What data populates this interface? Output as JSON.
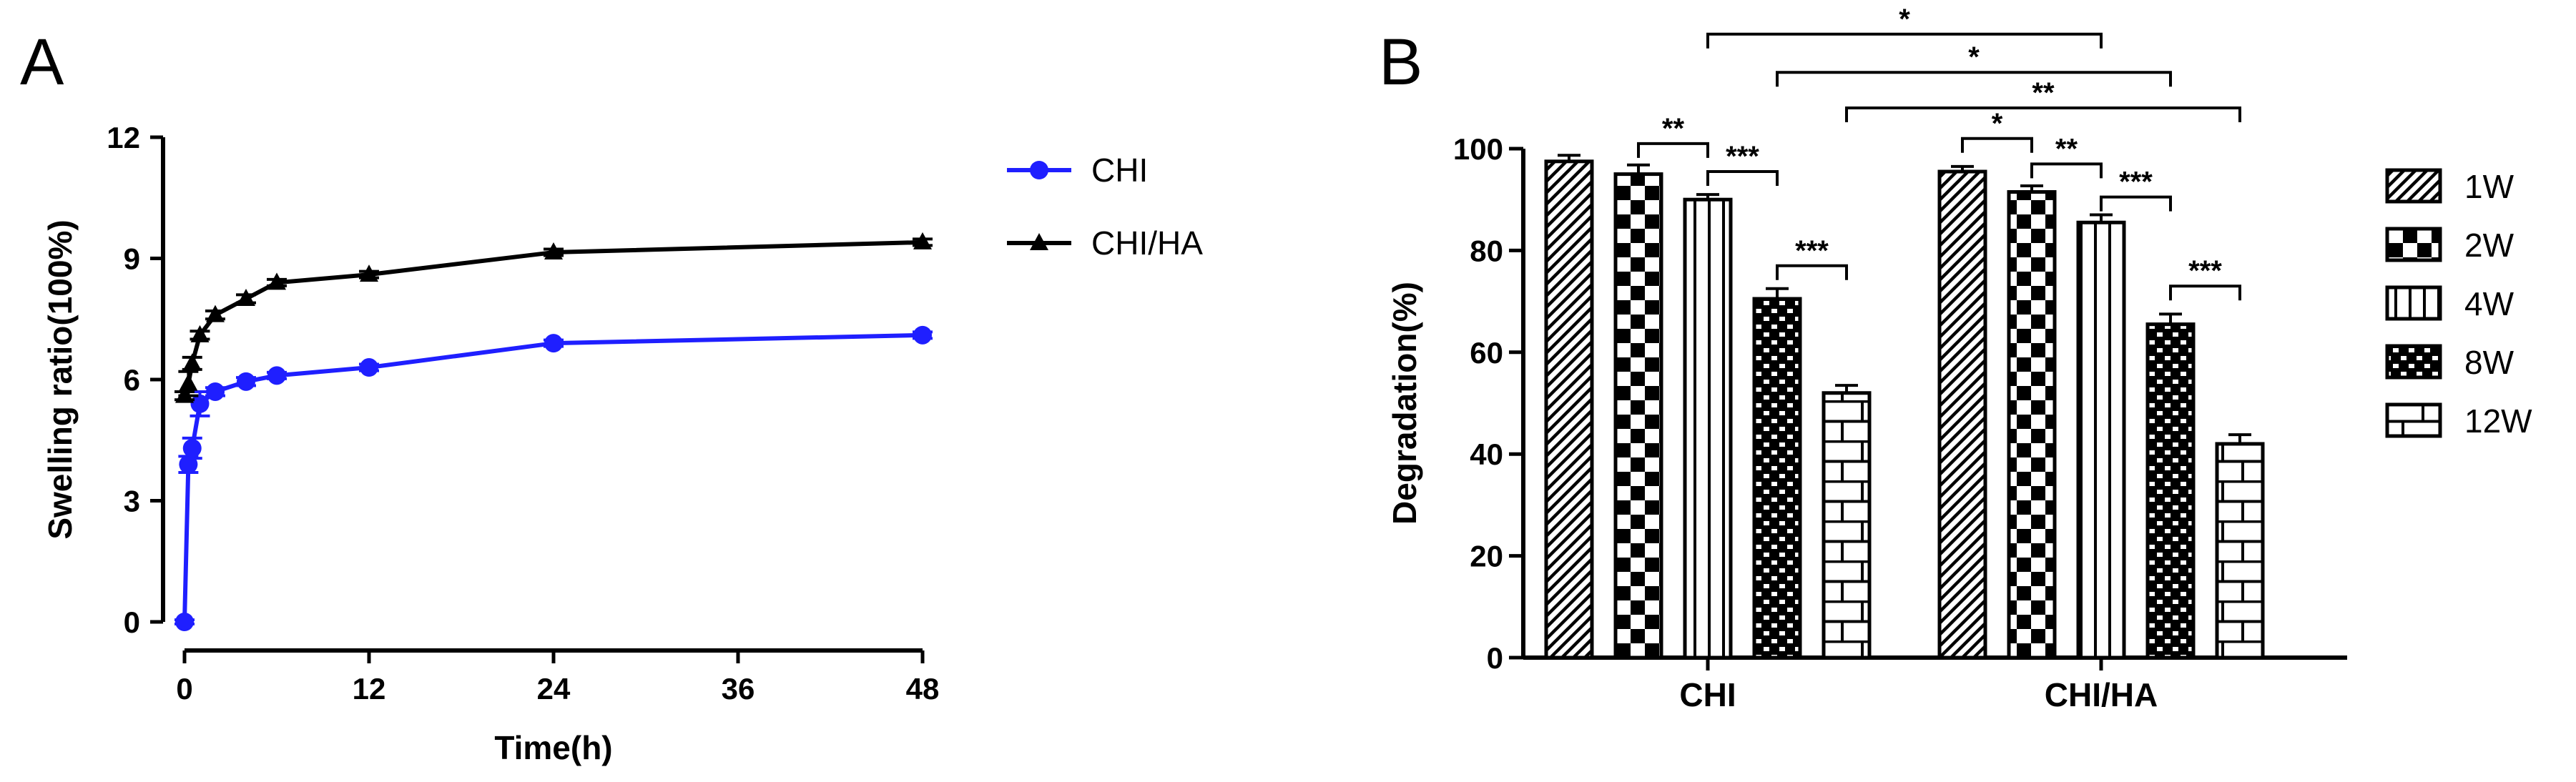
{
  "panels": {
    "A": {
      "letter": "A"
    },
    "B": {
      "letter": "B"
    }
  },
  "chart_data": [
    {
      "type": "line",
      "panel": "A",
      "title": "",
      "xlabel": "Time(h)",
      "ylabel": "Swelling ratio(100%)",
      "xlim": [
        0,
        48
      ],
      "ylim": [
        0,
        12
      ],
      "xticks": [
        0,
        12,
        24,
        36,
        48
      ],
      "yticks": [
        0,
        3,
        6,
        9,
        12
      ],
      "legend_position": "top-right",
      "series": [
        {
          "name": "CHI",
          "marker": "circle",
          "color": "#1f1fff",
          "x": [
            0,
            0.25,
            0.5,
            1,
            2,
            4,
            6,
            12,
            24,
            48
          ],
          "y": [
            0,
            3.9,
            4.3,
            5.4,
            5.7,
            5.95,
            6.1,
            6.3,
            6.9,
            7.1
          ],
          "err": [
            0.05,
            0.2,
            0.25,
            0.3,
            0.1,
            0.1,
            0.08,
            0.08,
            0.08,
            0.08
          ]
        },
        {
          "name": "CHI/HA",
          "marker": "triangle",
          "color": "#000000",
          "x": [
            0,
            0.25,
            0.5,
            1,
            2,
            4,
            6,
            12,
            24,
            48
          ],
          "y": [
            5.6,
            5.9,
            6.4,
            7.1,
            7.6,
            8.0,
            8.4,
            8.6,
            9.15,
            9.4
          ],
          "err": [
            0.1,
            0.3,
            0.15,
            0.1,
            0.1,
            0.1,
            0.08,
            0.08,
            0.08,
            0.08
          ]
        }
      ]
    },
    {
      "type": "bar",
      "panel": "B",
      "title": "",
      "xlabel": "",
      "ylabel": "Degradation(%)",
      "ylim": [
        0,
        100
      ],
      "yticks": [
        0,
        20,
        40,
        60,
        80,
        100
      ],
      "categories": [
        "CHI",
        "CHI/HA"
      ],
      "legend_position": "right",
      "series": [
        {
          "name": "1W",
          "pattern": "diagonal",
          "values": [
            97.5,
            95.5
          ],
          "err": [
            1.2,
            1.0
          ]
        },
        {
          "name": "2W",
          "pattern": "checker",
          "values": [
            95,
            91.5
          ],
          "err": [
            1.8,
            1.2
          ]
        },
        {
          "name": "4W",
          "pattern": "vertical",
          "values": [
            90,
            85.5
          ],
          "err": [
            1.0,
            1.5
          ]
        },
        {
          "name": "8W",
          "pattern": "brick-small",
          "values": [
            70.5,
            65.5
          ],
          "err": [
            2.0,
            2.0
          ]
        },
        {
          "name": "12W",
          "pattern": "brick",
          "values": [
            52,
            42
          ],
          "err": [
            1.5,
            1.8
          ]
        }
      ],
      "significance": [
        {
          "label": "**",
          "from": [
            0,
            1
          ],
          "to": [
            0,
            2
          ],
          "y": 101
        },
        {
          "label": "***",
          "from": [
            0,
            2
          ],
          "to": [
            0,
            3
          ],
          "y": 95.5
        },
        {
          "label": "***",
          "from": [
            0,
            3
          ],
          "to": [
            0,
            4
          ],
          "y": 77
        },
        {
          "label": "*",
          "from": [
            1,
            0
          ],
          "to": [
            1,
            1
          ],
          "y": 102
        },
        {
          "label": "**",
          "from": [
            1,
            1
          ],
          "to": [
            1,
            2
          ],
          "y": 97
        },
        {
          "label": "***",
          "from": [
            1,
            2
          ],
          "to": [
            1,
            3
          ],
          "y": 90.5
        },
        {
          "label": "***",
          "from": [
            1,
            3
          ],
          "to": [
            1,
            4
          ],
          "y": 73
        },
        {
          "label": "*",
          "from": [
            0,
            2
          ],
          "to": [
            1,
            2
          ],
          "y": 122.5
        },
        {
          "label": "*",
          "from": [
            0,
            3
          ],
          "to": [
            1,
            3
          ],
          "y": 115
        },
        {
          "label": "**",
          "from": [
            0,
            4
          ],
          "to": [
            1,
            4
          ],
          "y": 108
        }
      ]
    }
  ]
}
